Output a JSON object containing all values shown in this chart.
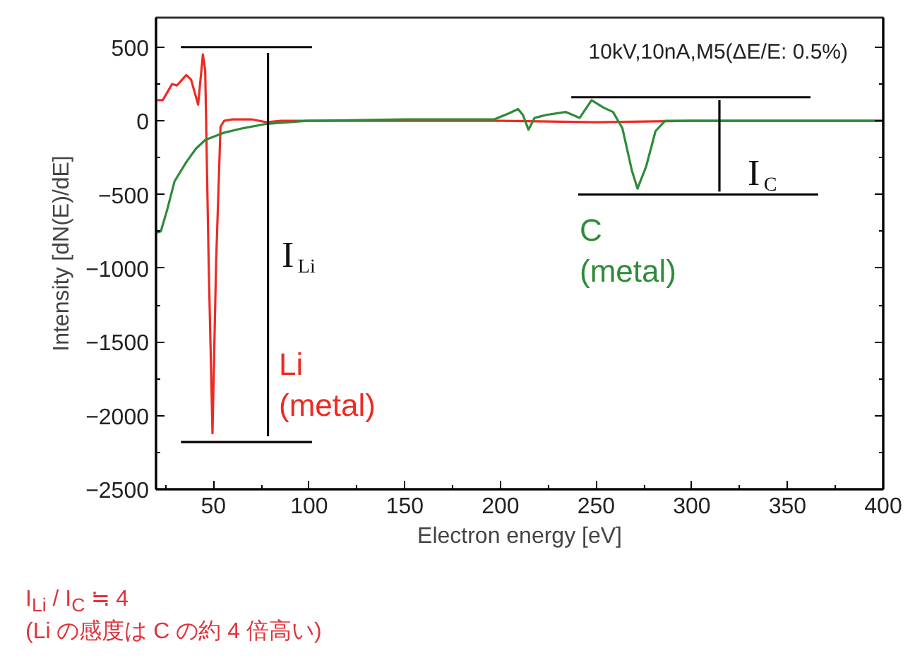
{
  "chart_data": {
    "type": "line",
    "xlabel": "Electron energy [eV]",
    "ylabel": "Intensity [dN(E)/dE]",
    "xlim": [
      20,
      400
    ],
    "ylim": [
      -2500,
      700
    ],
    "xticks": [
      50,
      100,
      150,
      200,
      250,
      300,
      350,
      400
    ],
    "yticks": [
      -2500,
      -2000,
      -1500,
      -1000,
      -500,
      0,
      500
    ],
    "grid": false,
    "marker": "none",
    "line_style": "solid",
    "series": [
      {
        "color": "#ee2a24",
        "x": [
          20,
          23.5,
          28.4,
          30.9,
          35.8,
          38.3,
          42,
          44.5,
          45.7,
          47.5,
          49.5,
          51.4,
          53.7,
          55.6,
          60,
          70,
          78,
          85,
          100,
          150,
          200,
          250,
          300,
          350,
          400
        ],
        "values": [
          140,
          140,
          250,
          240,
          310,
          280,
          110,
          450,
          340,
          -960,
          -2120,
          -960,
          -40,
          0,
          10,
          10,
          -10,
          0,
          0,
          0,
          0,
          -10,
          0,
          0,
          0
        ]
      },
      {
        "color": "#2e8b3a",
        "x": [
          20,
          22.5,
          25.9,
          29.7,
          35.8,
          40.8,
          45.7,
          55.7,
          65.5,
          78,
          99,
          150,
          196.8,
          204.2,
          209.2,
          211.7,
          214.6,
          217.8,
          224,
          234,
          241.4,
          247.6,
          253.8,
          258.8,
          263.7,
          268.7,
          271.6,
          276.1,
          281,
          286,
          300,
          350,
          400
        ],
        "values": [
          -760,
          -750,
          -600,
          -410,
          -280,
          -190,
          -130,
          -80,
          -50,
          -20,
          0,
          10,
          10,
          50,
          80,
          40,
          -60,
          20,
          40,
          60,
          20,
          140,
          90,
          60,
          -50,
          -340,
          -460,
          -310,
          -70,
          0,
          0,
          0,
          0
        ]
      },
      {
        "color": "#000000",
        "x": [
          33,
          101.5
        ],
        "values": [
          500,
          500
        ]
      },
      {
        "color": "#000000",
        "x": [
          33,
          101.5
        ],
        "values": [
          -2180,
          -2180
        ]
      },
      {
        "color": "#000000",
        "x": [
          78.5,
          78.5
        ],
        "values": [
          460,
          -2140
        ]
      },
      {
        "color": "#000000",
        "x": [
          237,
          362
        ],
        "values": [
          160,
          160
        ]
      },
      {
        "color": "#000000",
        "x": [
          240.6,
          366
        ],
        "values": [
          -500,
          -500
        ]
      },
      {
        "color": "#000000",
        "x": [
          314.4,
          314.4
        ],
        "values": [
          140,
          -480
        ]
      }
    ],
    "annotations": [
      "10kV,10nA,M5(ΔE/E: 0.5%)",
      "I$_{Li}$",
      "Li\n(metal)",
      "I$_{C}$",
      "C\n(metal)",
      "I$_{Li}$ / I$_{C}$ ≒ 4",
      "(Li の感度は C の約 4 倍高い)"
    ]
  }
}
